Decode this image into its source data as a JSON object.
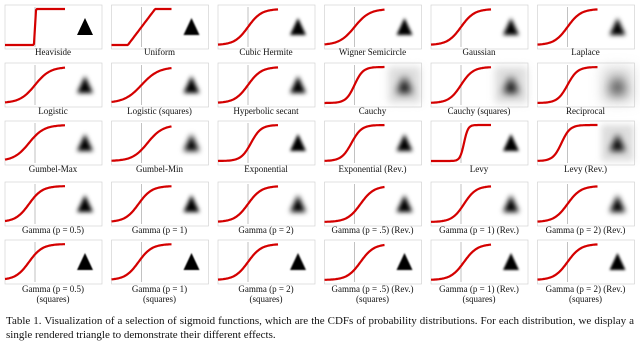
{
  "figure": {
    "cells": [
      {
        "label": "Heaviside"
      },
      {
        "label": "Uniform"
      },
      {
        "label": "Cubic Hermite"
      },
      {
        "label": "Wigner Semicircle"
      },
      {
        "label": "Gaussian"
      },
      {
        "label": "Laplace"
      },
      {
        "label": "Logistic"
      },
      {
        "label": "Logistic (squares)"
      },
      {
        "label": "Hyperbolic secant"
      },
      {
        "label": "Cauchy"
      },
      {
        "label": "Cauchy (squares)"
      },
      {
        "label": "Reciprocal"
      },
      {
        "label": "Gumbel-Max"
      },
      {
        "label": "Gumbel-Min"
      },
      {
        "label": "Exponential"
      },
      {
        "label": "Exponential (Rev.)"
      },
      {
        "label": "Levy"
      },
      {
        "label": "Levy (Rev.)"
      },
      {
        "label": "Gamma (p = 0.5)"
      },
      {
        "label": "Gamma (p = 1)"
      },
      {
        "label": "Gamma (p = 2)"
      },
      {
        "label": "Gamma (p = .5) (Rev.)"
      },
      {
        "label": "Gamma (p = 1) (Rev.)"
      },
      {
        "label": "Gamma (p = 2) (Rev.)"
      },
      {
        "label": "Gamma (p = 0.5)",
        "label2": "(squares)"
      },
      {
        "label": "Gamma (p = 1)",
        "label2": "(squares)"
      },
      {
        "label": "Gamma (p = 2)",
        "label2": "(squares)"
      },
      {
        "label": "Gamma (p = .5) (Rev.)",
        "label2": "(squares)"
      },
      {
        "label": "Gamma (p = 1) (Rev.)",
        "label2": "(squares)"
      },
      {
        "label": "Gamma (p = 2) (Rev.)",
        "label2": "(squares)"
      }
    ]
  },
  "caption": "Table 1. Visualization of a selection of sigmoid functions, which are the CDFs of probability distributions. For each distribution, we display a single rendered triangle to demonstrate their different effects."
}
